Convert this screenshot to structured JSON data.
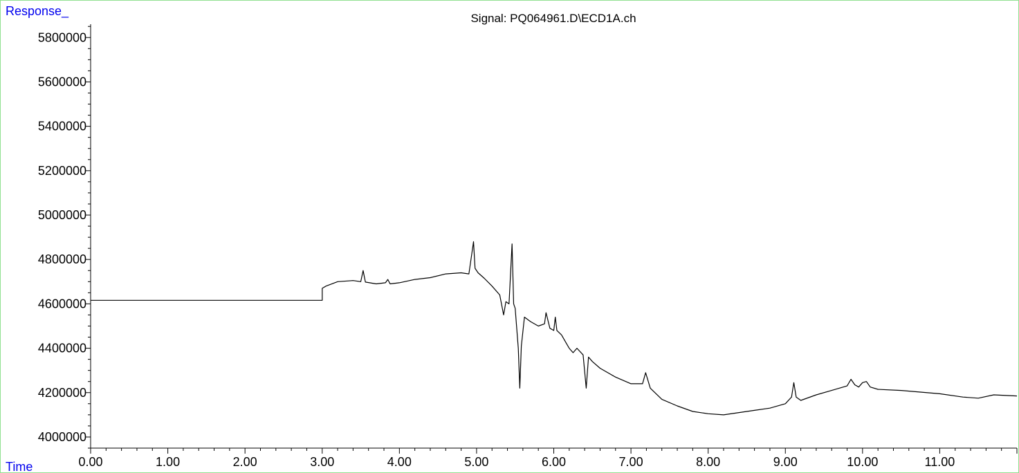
{
  "chart_data": {
    "type": "line",
    "title": "Signal: PQ064961.D\\ECD1A.ch",
    "ylabel": "Response_",
    "xlabel": "Time",
    "xlim": [
      0.0,
      12.0
    ],
    "ylim": [
      3950000,
      5860000
    ],
    "x_ticks": [
      "0.00",
      "1.00",
      "2.00",
      "3.00",
      "4.00",
      "5.00",
      "6.00",
      "7.00",
      "8.00",
      "9.00",
      "10.00",
      "11.00"
    ],
    "x_tick_values": [
      0,
      1,
      2,
      3,
      4,
      5,
      6,
      7,
      8,
      9,
      10,
      11
    ],
    "y_ticks": [
      "4000000",
      "4200000",
      "4400000",
      "4600000",
      "4800000",
      "5000000",
      "5200000",
      "5400000",
      "5600000",
      "5800000"
    ],
    "y_tick_values": [
      4000000,
      4200000,
      4400000,
      4600000,
      4800000,
      5000000,
      5200000,
      5400000,
      5600000,
      5800000
    ],
    "colors": {
      "line": "#000000",
      "corner_labels": "#0000ee",
      "frame": "#8fe08f"
    },
    "series": [
      {
        "x": [
          0.0,
          3.0,
          3.0,
          3.05,
          3.2,
          3.4,
          3.5,
          3.53,
          3.56,
          3.7,
          3.82,
          3.85,
          3.88,
          4.0,
          4.2,
          4.4,
          4.6,
          4.8,
          4.9,
          4.94,
          4.96,
          4.98,
          5.02,
          5.1,
          5.2,
          5.3,
          5.35,
          5.38,
          5.42,
          5.46,
          5.48,
          5.5,
          5.54,
          5.56,
          5.58,
          5.62,
          5.7,
          5.8,
          5.88,
          5.9,
          5.95,
          6.0,
          6.02,
          6.04,
          6.1,
          6.15,
          6.2,
          6.25,
          6.3,
          6.38,
          6.42,
          6.45,
          6.5,
          6.6,
          6.8,
          7.0,
          7.15,
          7.19,
          7.25,
          7.4,
          7.6,
          7.8,
          8.0,
          8.2,
          8.4,
          8.6,
          8.8,
          9.0,
          9.08,
          9.11,
          9.14,
          9.2,
          9.4,
          9.6,
          9.8,
          9.85,
          9.9,
          9.95,
          10.0,
          10.05,
          10.1,
          10.2,
          10.5,
          11.0,
          11.3,
          11.5,
          11.7,
          12.0
        ],
        "y": [
          4616000,
          4616000,
          4670000,
          4680000,
          4700000,
          4705000,
          4700000,
          4750000,
          4698000,
          4690000,
          4695000,
          4710000,
          4690000,
          4695000,
          4710000,
          4718000,
          4735000,
          4740000,
          4735000,
          4830000,
          4880000,
          4760000,
          4740000,
          4715000,
          4680000,
          4640000,
          4550000,
          4610000,
          4600000,
          4870000,
          4600000,
          4580000,
          4400000,
          4220000,
          4410000,
          4540000,
          4520000,
          4500000,
          4510000,
          4560000,
          4490000,
          4480000,
          4540000,
          4480000,
          4460000,
          4430000,
          4400000,
          4380000,
          4400000,
          4370000,
          4220000,
          4360000,
          4340000,
          4310000,
          4270000,
          4240000,
          4240000,
          4290000,
          4220000,
          4170000,
          4140000,
          4115000,
          4105000,
          4100000,
          4110000,
          4120000,
          4130000,
          4150000,
          4180000,
          4245000,
          4180000,
          4165000,
          4190000,
          4210000,
          4230000,
          4260000,
          4235000,
          4225000,
          4245000,
          4250000,
          4225000,
          4215000,
          4210000,
          4195000,
          4180000,
          4175000,
          4190000,
          4185000
        ]
      }
    ]
  }
}
